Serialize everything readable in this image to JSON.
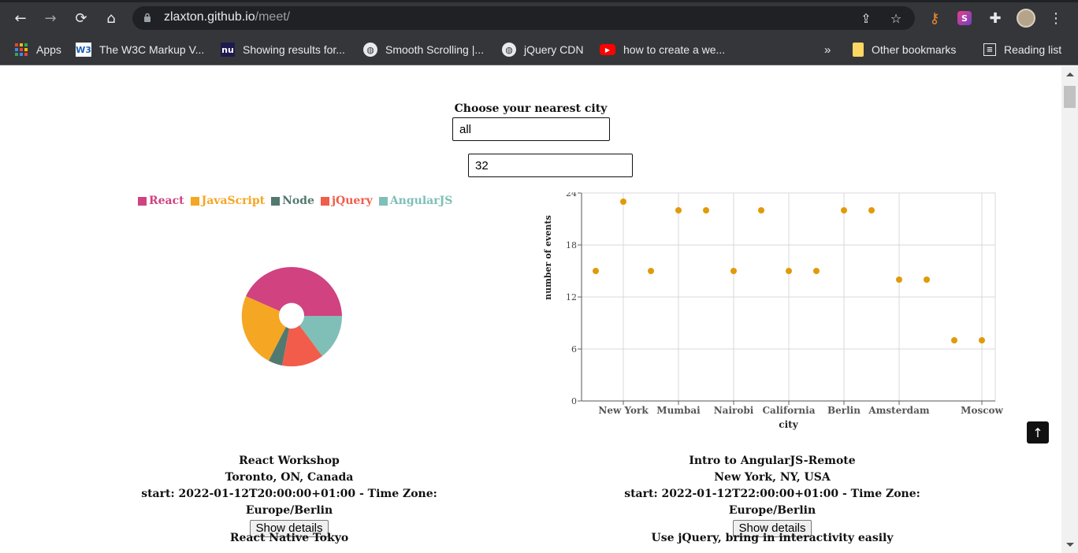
{
  "browser": {
    "url_domain": "zlaxton.github.io",
    "url_path": "/meet/",
    "bookmarks": [
      {
        "label": "Apps",
        "icon": "apps-grid-icon"
      },
      {
        "label": "The W3C Markup V...",
        "icon": "w3c-icon"
      },
      {
        "label": "Showing results for...",
        "icon": "nu-icon"
      },
      {
        "label": "Smooth Scrolling |...",
        "icon": "globe-icon"
      },
      {
        "label": "jQuery CDN",
        "icon": "globe-icon"
      },
      {
        "label": "how to create a we...",
        "icon": "youtube-icon"
      }
    ],
    "overflow_label": "»",
    "other_bookmarks": "Other bookmarks",
    "reading_list": "Reading list"
  },
  "filter": {
    "label": "Choose your nearest city",
    "city_value": "all",
    "number_value": "32"
  },
  "pie": {
    "legend": [
      {
        "label": "React",
        "color": "#d04280"
      },
      {
        "label": "JavaScript",
        "color": "#f5a623"
      },
      {
        "label": "Node",
        "color": "#52796f"
      },
      {
        "label": "jQuery",
        "color": "#f25c4a"
      },
      {
        "label": "AngularJS",
        "color": "#7fbfb7"
      }
    ]
  },
  "chart_data": {
    "type": "scatter",
    "xlabel": "city",
    "ylabel": "number of events",
    "ylim": [
      0,
      24
    ],
    "yticks": [
      0,
      6,
      12,
      18,
      24
    ],
    "x_tick_labels": [
      "New York",
      "Mumbai",
      "Nairobi",
      "California",
      "Berlin",
      "Amsterdam",
      "Moscow"
    ],
    "grid": true,
    "point_color": "#e09b0b",
    "points": [
      {
        "x": 0,
        "y": 15
      },
      {
        "x": 1,
        "y": 23
      },
      {
        "x": 2,
        "y": 15
      },
      {
        "x": 3,
        "y": 22
      },
      {
        "x": 4,
        "y": 22
      },
      {
        "x": 5,
        "y": 15
      },
      {
        "x": 6,
        "y": 22
      },
      {
        "x": 7,
        "y": 15
      },
      {
        "x": 8,
        "y": 15
      },
      {
        "x": 9,
        "y": 22
      },
      {
        "x": 10,
        "y": 22
      },
      {
        "x": 11,
        "y": 14
      },
      {
        "x": 12,
        "y": 14
      },
      {
        "x": 13,
        "y": 7
      },
      {
        "x": 14,
        "y": 7
      }
    ]
  },
  "events": [
    {
      "title": "React Workshop",
      "location": "Toronto, ON, Canada",
      "start": "start: 2022-01-12T20:00:00+01:00 - Time Zone: Europe/Berlin",
      "button": "Show details"
    },
    {
      "title": "Intro to AngularJS-Remote",
      "location": "New York, NY, USA",
      "start": "start: 2022-01-12T22:00:00+01:00 - Time Zone: Europe/Berlin",
      "button": "Show details"
    },
    {
      "title": "React Native Tokyo"
    },
    {
      "title": "Use jQuery, bring in interactivity easily"
    }
  ],
  "scroll_top": "↑"
}
